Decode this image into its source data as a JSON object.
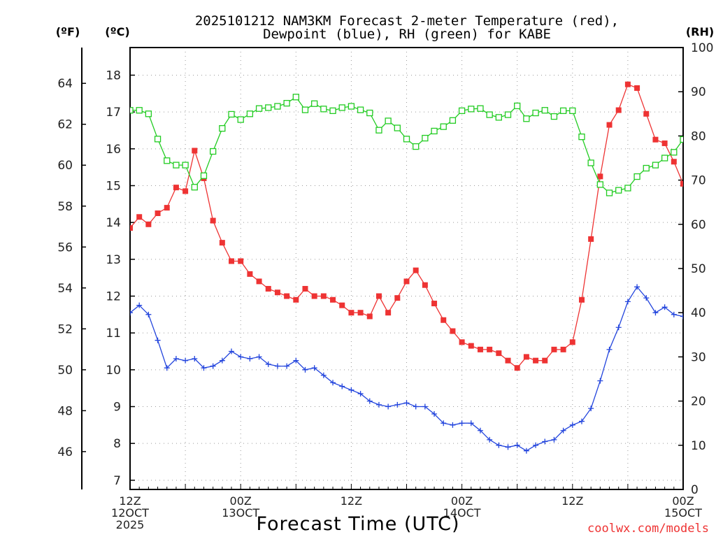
{
  "title_line1": "2025101212 NAM3KM Forecast 2-meter Temperature (red),",
  "title_line2": "Dewpoint (blue), RH (green) for KABE",
  "unit_f": "(ºF)",
  "unit_c": "(ºC)",
  "unit_rh": "(RH)",
  "credit": "coolwx.com/models",
  "colors": {
    "temperature": "#ee3333",
    "dewpoint": "#2244dd",
    "rh": "#22cc22"
  },
  "chart_data": {
    "type": "line",
    "xlabel": "Forecast Time (UTC)",
    "x_hours": [
      0,
      1,
      2,
      3,
      4,
      5,
      6,
      7,
      8,
      9,
      10,
      11,
      12,
      13,
      14,
      15,
      16,
      17,
      18,
      19,
      20,
      21,
      22,
      23,
      24,
      25,
      26,
      27,
      28,
      29,
      30,
      31,
      32,
      33,
      34,
      35,
      36,
      37,
      38,
      39,
      40,
      41,
      42,
      43,
      44,
      45,
      46,
      47,
      48,
      49,
      50,
      51,
      52,
      53,
      54,
      55,
      56,
      57,
      58,
      59,
      60
    ],
    "x_ticks": [
      {
        "hour": 0,
        "lines": [
          "12Z",
          "12OCT",
          "2025"
        ]
      },
      {
        "hour": 12,
        "lines": [
          "00Z",
          "13OCT"
        ]
      },
      {
        "hour": 24,
        "lines": [
          "12Z"
        ]
      },
      {
        "hour": 36,
        "lines": [
          "00Z",
          "14OCT"
        ]
      },
      {
        "hour": 48,
        "lines": [
          "12Z"
        ]
      },
      {
        "hour": 60,
        "lines": [
          "00Z",
          "15OCT"
        ]
      }
    ],
    "xlim": [
      0,
      60
    ],
    "ylim_c": [
      6.75,
      18.75
    ],
    "ylim_rh": [
      0,
      100
    ],
    "ylim_f": [
      44.15,
      65.75
    ],
    "yticks_c": [
      7,
      8,
      9,
      10,
      11,
      12,
      13,
      14,
      15,
      16,
      17,
      18
    ],
    "yticks_f": [
      46,
      48,
      50,
      52,
      54,
      56,
      58,
      60,
      62,
      64
    ],
    "yticks_rh": [
      0,
      10,
      20,
      30,
      40,
      50,
      60,
      70,
      80,
      90,
      100
    ],
    "series": [
      {
        "name": "Temperature",
        "axis": "c",
        "marker": "filled-square",
        "color": "#ee3333",
        "values": [
          13.85,
          14.15,
          13.95,
          14.25,
          14.4,
          14.95,
          14.85,
          15.95,
          15.2,
          14.05,
          13.45,
          12.95,
          12.95,
          12.6,
          12.4,
          12.2,
          12.1,
          12.0,
          11.9,
          12.2,
          12.0,
          12.0,
          11.9,
          11.75,
          11.55,
          11.55,
          11.45,
          12.0,
          11.55,
          11.95,
          12.4,
          12.7,
          12.3,
          11.8,
          11.35,
          11.05,
          10.75,
          10.65,
          10.55,
          10.55,
          10.45,
          10.25,
          10.05,
          10.35,
          10.25,
          10.25,
          10.55,
          10.55,
          10.75,
          11.9,
          13.55,
          15.25,
          16.65,
          17.05,
          17.75,
          17.65,
          16.95,
          16.25,
          16.15,
          15.65,
          15.05
        ]
      },
      {
        "name": "Dewpoint",
        "axis": "c",
        "marker": "plus",
        "color": "#2244dd",
        "values": [
          11.55,
          11.75,
          11.5,
          10.8,
          10.05,
          10.3,
          10.25,
          10.3,
          10.05,
          10.1,
          10.25,
          10.5,
          10.35,
          10.3,
          10.35,
          10.15,
          10.1,
          10.1,
          10.25,
          10.0,
          10.05,
          9.85,
          9.65,
          9.55,
          9.45,
          9.35,
          9.15,
          9.05,
          9.0,
          9.05,
          9.1,
          9.0,
          9.0,
          8.8,
          8.55,
          8.5,
          8.55,
          8.55,
          8.35,
          8.1,
          7.95,
          7.9,
          7.95,
          7.8,
          7.95,
          8.05,
          8.1,
          8.35,
          8.5,
          8.6,
          8.95,
          9.7,
          10.55,
          11.15,
          11.85,
          12.25,
          11.95,
          11.55,
          11.7,
          11.5,
          11.45
        ]
      },
      {
        "name": "RH",
        "axis": "rh",
        "marker": "open-square",
        "color": "#22cc22",
        "values": [
          85.8,
          85.8,
          85.0,
          79.3,
          74.4,
          73.4,
          73.4,
          68.4,
          71.0,
          76.5,
          81.7,
          84.9,
          83.7,
          85.0,
          86.2,
          86.4,
          86.7,
          87.4,
          88.8,
          85.9,
          87.3,
          86.1,
          85.7,
          86.4,
          86.7,
          85.9,
          85.2,
          81.3,
          83.4,
          81.8,
          79.3,
          77.6,
          79.5,
          81.1,
          82.1,
          83.5,
          85.7,
          86.1,
          86.2,
          84.8,
          84.2,
          84.8,
          86.8,
          83.9,
          85.2,
          85.8,
          84.4,
          85.7,
          85.7,
          79.8,
          73.9,
          69.0,
          67.1,
          67.7,
          68.2,
          70.8,
          72.7,
          73.4,
          75.0,
          76.3,
          79.2
        ]
      }
    ]
  }
}
